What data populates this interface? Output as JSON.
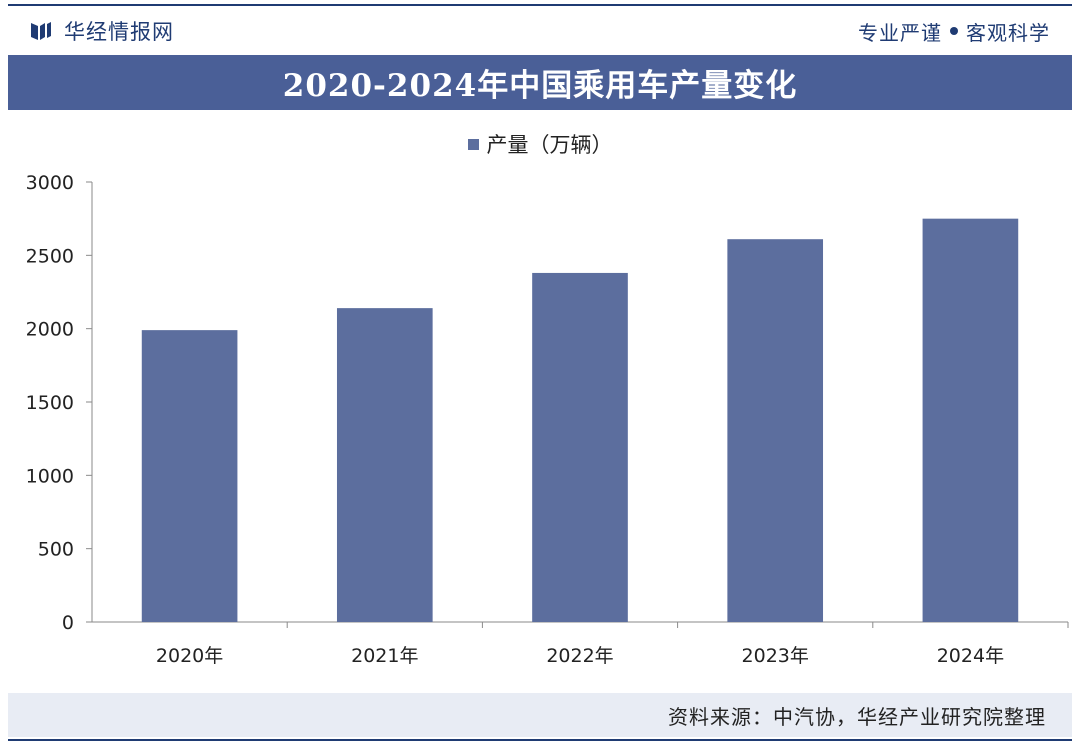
{
  "header": {
    "brand": "华经情报网",
    "slogan_left": "专业严谨",
    "slogan_right": "客观科学"
  },
  "colors": {
    "brand": "#1f3b73",
    "title_band": "#4a5f97",
    "bar": "#5c6e9e",
    "source_band": "#e8ecf4"
  },
  "chart_data": {
    "type": "bar",
    "title": "2020-2024年中国乘用车产量变化",
    "categories": [
      "2020年",
      "2021年",
      "2022年",
      "2023年",
      "2024年"
    ],
    "series": [
      {
        "name": "产量（万辆）",
        "values": [
          1990,
          2140,
          2380,
          2610,
          2750
        ]
      }
    ],
    "ylim": [
      0,
      3000
    ],
    "yticks": [
      0,
      500,
      1000,
      1500,
      2000,
      2500,
      3000
    ],
    "legend": "top-center",
    "grid": false
  },
  "footer": {
    "source": "资料来源：中汽协，华经产业研究院整理"
  }
}
